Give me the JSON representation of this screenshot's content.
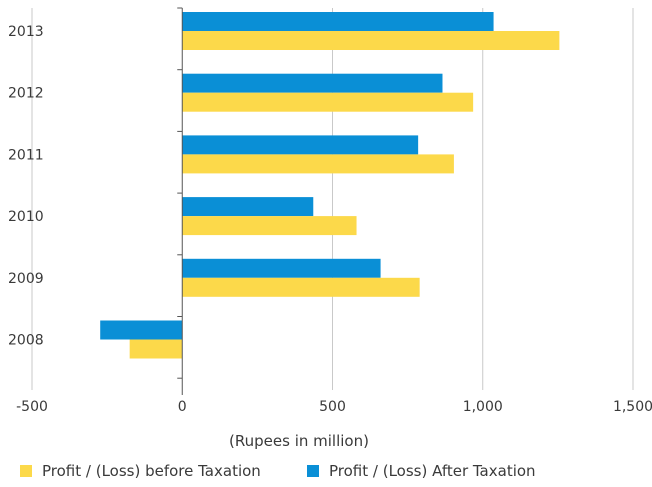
{
  "chart_data": {
    "type": "bar",
    "orientation": "horizontal",
    "categories": [
      "2013",
      "2012",
      "2011",
      "2010",
      "2009",
      "2008"
    ],
    "series": [
      {
        "name": "Profit / (Loss) After Taxation",
        "color": "#0a8fd6",
        "values": [
          1036,
          866,
          785,
          436,
          660,
          -273
        ]
      },
      {
        "name": "Profit / (Loss) before Taxation",
        "color": "#fcd94a",
        "values": [
          1255,
          968,
          904,
          580,
          790,
          -175
        ]
      }
    ],
    "xlabel": "(Rupees in million)",
    "xlim": [
      -500,
      1500
    ],
    "xticks": [
      -500,
      0,
      500,
      1000,
      1500
    ],
    "xtick_labels": [
      "-500",
      "0",
      "500",
      "1,000",
      "1,500"
    ],
    "grid": true,
    "legend_position": "bottom"
  },
  "legend": {
    "items": [
      {
        "label": "Profit / (Loss) before Taxation",
        "color": "#fcd94a"
      },
      {
        "label": "Profit / (Loss) After Taxation",
        "color": "#0a8fd6"
      }
    ]
  }
}
